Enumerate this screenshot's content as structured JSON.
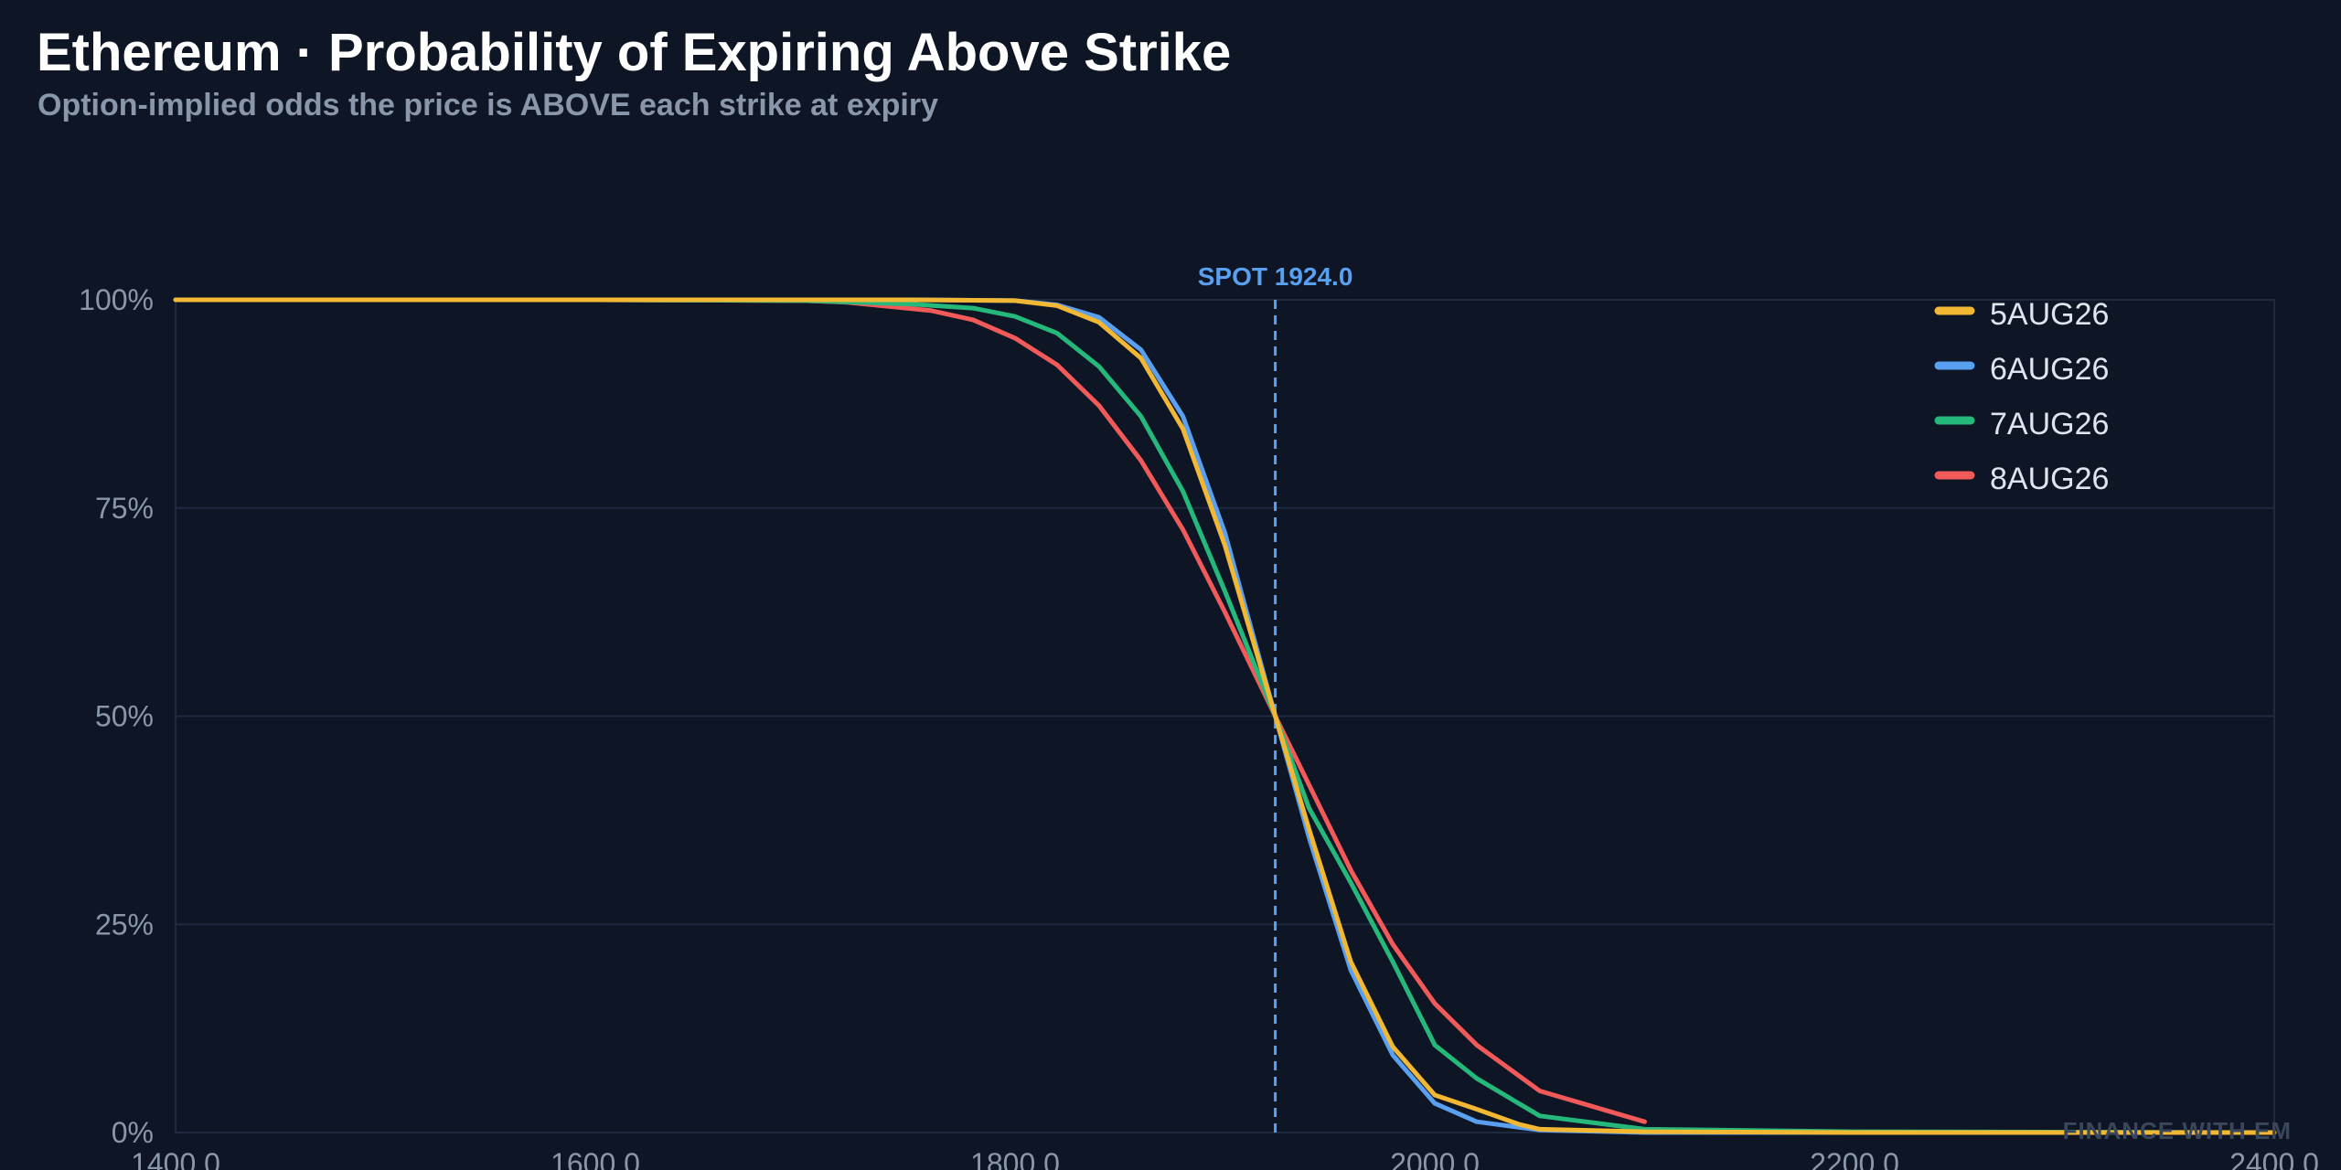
{
  "header": {
    "title": "Ethereum · Probability of Expiring Above Strike",
    "subtitle": "Option-implied odds the price is ABOVE each strike at expiry"
  },
  "watermark": "FINANCE WITH EM",
  "chart_data": {
    "type": "line",
    "title": "Ethereum · Probability of Expiring Above Strike",
    "subtitle": "Option-implied odds the price is ABOVE each strike at expiry",
    "xlabel": "",
    "ylabel": "",
    "xlim": [
      1400,
      2400
    ],
    "ylim": [
      0,
      100
    ],
    "x_ticks": [
      1400,
      1600,
      1800,
      2000,
      2200,
      2400
    ],
    "x_tick_labels": [
      "1400.0",
      "1600.0",
      "1800.0",
      "2000.0",
      "2200.0",
      "2400.0"
    ],
    "y_ticks": [
      0,
      25,
      50,
      75,
      100
    ],
    "y_tick_labels": [
      "0%",
      "25%",
      "50%",
      "75%",
      "100%"
    ],
    "grid": true,
    "legend_position": "top-right",
    "spot": {
      "value": 1924.0,
      "label": "SPOT 1924.0",
      "color": "#5aa0f0"
    },
    "series": [
      {
        "name": "5AUG26",
        "color": "#f2b733",
        "points": [
          [
            1400,
            100
          ],
          [
            1600,
            100
          ],
          [
            1700,
            100
          ],
          [
            1750,
            100
          ],
          [
            1800,
            99.9
          ],
          [
            1820,
            99.3
          ],
          [
            1840,
            97.3
          ],
          [
            1860,
            93
          ],
          [
            1880,
            84.5
          ],
          [
            1900,
            70.5
          ],
          [
            1924,
            50
          ],
          [
            1940,
            36.5
          ],
          [
            1960,
            20.5
          ],
          [
            1980,
            10.3
          ],
          [
            2000,
            4.5
          ],
          [
            2020,
            2.8
          ],
          [
            2040,
            1
          ],
          [
            2050,
            0.4
          ],
          [
            2100,
            0.1
          ],
          [
            2200,
            0
          ],
          [
            2400,
            0
          ]
        ]
      },
      {
        "name": "6AUG26",
        "color": "#5aa0f0",
        "points": [
          [
            1400,
            100
          ],
          [
            1600,
            100
          ],
          [
            1700,
            100
          ],
          [
            1750,
            100
          ],
          [
            1800,
            99.9
          ],
          [
            1820,
            99.4
          ],
          [
            1840,
            97.9
          ],
          [
            1860,
            94
          ],
          [
            1880,
            86
          ],
          [
            1900,
            72
          ],
          [
            1924,
            50
          ],
          [
            1940,
            35.5
          ],
          [
            1960,
            19.5
          ],
          [
            1980,
            9.3
          ],
          [
            2000,
            3.5
          ],
          [
            2020,
            1.3
          ],
          [
            2050,
            0.3
          ],
          [
            2100,
            0
          ],
          [
            2200,
            0
          ],
          [
            2400,
            0
          ]
        ]
      },
      {
        "name": "7AUG26",
        "color": "#25b87b",
        "points": [
          [
            1400,
            100
          ],
          [
            1600,
            100
          ],
          [
            1700,
            99.9
          ],
          [
            1750,
            99.5
          ],
          [
            1780,
            99
          ],
          [
            1800,
            98
          ],
          [
            1820,
            96
          ],
          [
            1840,
            92
          ],
          [
            1860,
            86
          ],
          [
            1880,
            77
          ],
          [
            1900,
            65
          ],
          [
            1924,
            50
          ],
          [
            1940,
            39
          ],
          [
            1960,
            30
          ],
          [
            1980,
            20.5
          ],
          [
            2000,
            10.5
          ],
          [
            2020,
            6.5
          ],
          [
            2050,
            2
          ],
          [
            2100,
            0.4
          ],
          [
            2200,
            0.1
          ],
          [
            2400,
            0
          ]
        ]
      },
      {
        "name": "8AUG26",
        "color": "#f25a5a",
        "points": [
          [
            1400,
            100
          ],
          [
            1600,
            100
          ],
          [
            1700,
            99.9
          ],
          [
            1720,
            99.7
          ],
          [
            1740,
            99.2
          ],
          [
            1760,
            98.7
          ],
          [
            1780,
            97.6
          ],
          [
            1800,
            95.4
          ],
          [
            1820,
            92.2
          ],
          [
            1840,
            87.3
          ],
          [
            1860,
            80.7
          ],
          [
            1880,
            72.4
          ],
          [
            1900,
            62.5
          ],
          [
            1924,
            50
          ],
          [
            1940,
            41.8
          ],
          [
            1960,
            31.5
          ],
          [
            1980,
            22.6
          ],
          [
            2000,
            15.5
          ],
          [
            2020,
            10.5
          ],
          [
            2050,
            5
          ],
          [
            2100,
            1.3
          ]
        ]
      }
    ]
  }
}
